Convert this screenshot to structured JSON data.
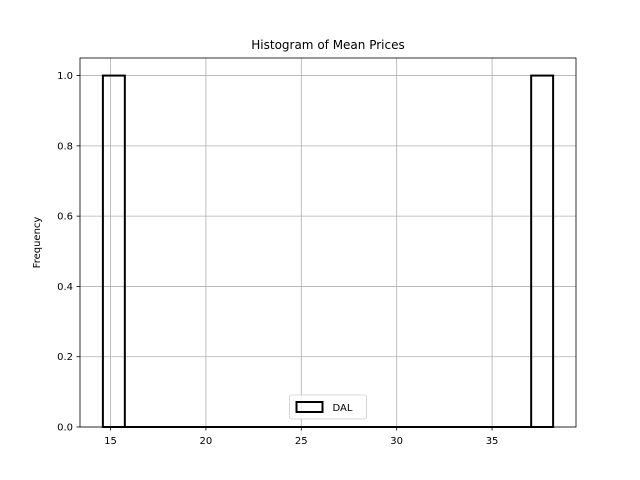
{
  "chart_data": {
    "type": "bar",
    "title": "Histogram of Mean Prices",
    "xlabel": "",
    "ylabel": "Frequency",
    "xlim": [
      13.4,
      39.4
    ],
    "ylim": [
      0,
      1.05
    ],
    "xticks": [
      15,
      20,
      25,
      30,
      35
    ],
    "yticks": [
      0.0,
      0.2,
      0.4,
      0.6,
      0.8,
      1.0
    ],
    "grid": true,
    "legend": {
      "placement": "lower-center",
      "entries": [
        "DAL"
      ]
    },
    "series": [
      {
        "name": "DAL",
        "bins": [
          {
            "x0": 14.6,
            "x1": 15.75,
            "count": 1
          },
          {
            "x0": 37.05,
            "x1": 38.2,
            "count": 1
          }
        ],
        "edge_color": "#000000",
        "fill": "none"
      }
    ]
  }
}
